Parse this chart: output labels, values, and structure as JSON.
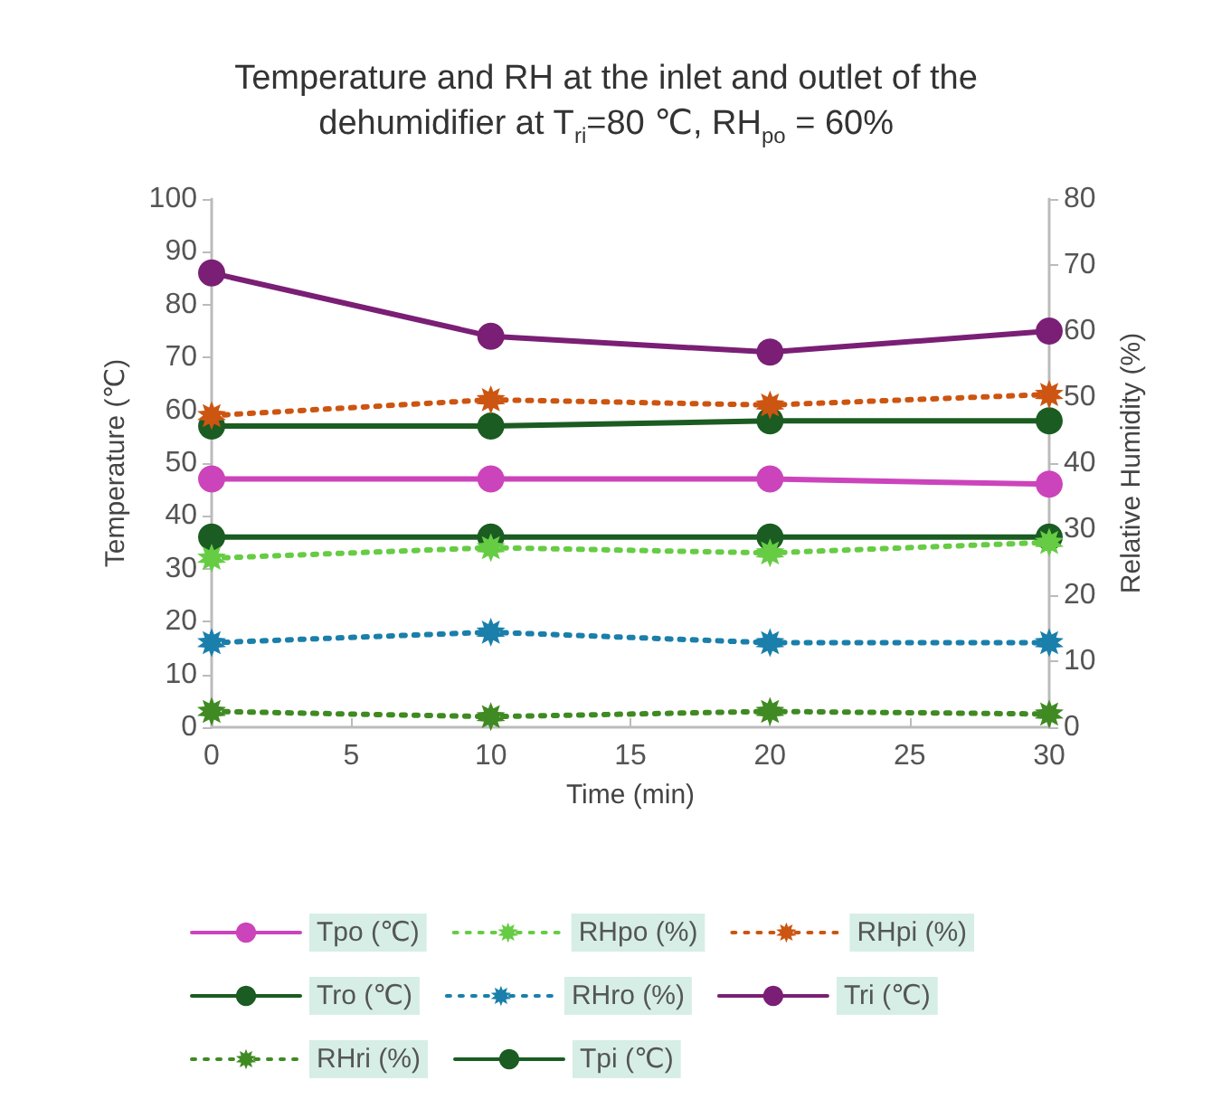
{
  "chart_data": {
    "type": "line",
    "title": "Temperature and RH at the inlet and outlet of the\ndehumidifier at T$_{ri}$=80 ℃, RH$_{po}$ = 60%",
    "xlabel": "Time (min)",
    "ylabel": "Temperature (℃)",
    "y2label": "Relative Humidity (%)",
    "x": [
      0,
      10,
      20,
      30
    ],
    "xlim": [
      0,
      30
    ],
    "xticks": [
      0,
      5,
      10,
      15,
      20,
      25,
      30
    ],
    "ylim": [
      0,
      100
    ],
    "yticks": [
      0,
      10,
      20,
      30,
      40,
      50,
      60,
      70,
      80,
      90,
      100
    ],
    "y2lim": [
      0,
      80
    ],
    "y2ticks": [
      0,
      10,
      20,
      30,
      40,
      50,
      60,
      70,
      80
    ],
    "grid": false,
    "legend": "bottom",
    "series": [
      {
        "name": "Tpo (℃)",
        "color": "#cc44bb",
        "marker": "circle",
        "line_style": "solid",
        "values": [
          47,
          47,
          47,
          46
        ]
      },
      {
        "name": "RHpo (%)",
        "color": "#66cc44",
        "marker": "star",
        "line_style": "dotted",
        "axis": "y2",
        "values": [
          25.6,
          27.2,
          26.4,
          28
        ]
      },
      {
        "name": "RHpi (%)",
        "color": "#cc5511",
        "marker": "star",
        "line_style": "dotted",
        "axis": "y2",
        "values": [
          47.2,
          49.6,
          48.8,
          50.4
        ]
      },
      {
        "name": "Tro (℃)",
        "color": "#1a5c22",
        "marker": "circle",
        "line_style": "solid",
        "values": [
          57,
          57,
          58,
          58
        ]
      },
      {
        "name": "RHro (%)",
        "color": "#1a7faa",
        "marker": "star",
        "line_style": "dotted",
        "axis": "y2",
        "values": [
          12.8,
          14.4,
          12.8,
          12.8
        ]
      },
      {
        "name": "Tri (℃)",
        "color": "#7a1f75",
        "marker": "circle",
        "line_style": "solid",
        "values": [
          86,
          74,
          71,
          75
        ]
      },
      {
        "name": "RHri (%)",
        "color": "#3f8a22",
        "marker": "star",
        "line_style": "dotted",
        "axis": "y2",
        "values": [
          2.4,
          1.6,
          2.4,
          2
        ]
      },
      {
        "name": "Tpi (℃)",
        "color": "#1a5c22",
        "marker": "circle",
        "line_style": "solid",
        "values": [
          36,
          36,
          36,
          36
        ]
      }
    ]
  }
}
